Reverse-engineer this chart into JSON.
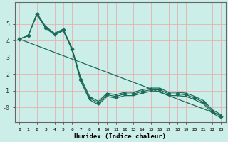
{
  "xlabel": "Humidex (Indice chaleur)",
  "background_color": "#cceee8",
  "grid_color": "#e8b0b0",
  "line_color": "#1a6b5a",
  "x": [
    0,
    1,
    2,
    3,
    4,
    5,
    6,
    7,
    8,
    9,
    10,
    11,
    12,
    13,
    14,
    15,
    16,
    17,
    18,
    19,
    20,
    21,
    22,
    23
  ],
  "y_main": [
    4.1,
    4.3,
    5.6,
    4.8,
    4.4,
    4.65,
    3.5,
    1.65,
    0.55,
    0.25,
    0.75,
    0.65,
    0.8,
    0.8,
    0.95,
    1.05,
    1.05,
    0.8,
    0.8,
    0.75,
    0.55,
    0.3,
    -0.25,
    -0.55
  ],
  "y_upper": [
    4.1,
    4.3,
    5.65,
    4.85,
    4.45,
    4.7,
    3.55,
    1.75,
    0.65,
    0.35,
    0.85,
    0.75,
    0.9,
    0.9,
    1.05,
    1.15,
    1.15,
    0.9,
    0.9,
    0.85,
    0.65,
    0.4,
    -0.15,
    -0.45
  ],
  "y_lower": [
    4.1,
    4.3,
    5.55,
    4.75,
    4.35,
    4.6,
    3.45,
    1.55,
    0.45,
    0.15,
    0.65,
    0.55,
    0.7,
    0.7,
    0.85,
    0.95,
    0.95,
    0.7,
    0.7,
    0.65,
    0.45,
    0.2,
    -0.35,
    -0.65
  ],
  "y_linear": [
    4.1,
    3.9,
    3.7,
    3.5,
    3.3,
    3.1,
    2.9,
    2.7,
    2.5,
    2.3,
    2.1,
    1.9,
    1.7,
    1.5,
    1.3,
    1.1,
    0.9,
    0.7,
    0.5,
    0.3,
    0.1,
    -0.1,
    -0.3,
    -0.5
  ],
  "ylim": [
    -0.9,
    6.3
  ],
  "xlim": [
    -0.5,
    23.5
  ],
  "yticks": [
    0,
    1,
    2,
    3,
    4,
    5
  ],
  "ytick_labels": [
    "-0",
    "1",
    "2",
    "3",
    "4",
    "5"
  ],
  "marker": "D",
  "markersize": 2.5,
  "linewidth": 0.9
}
